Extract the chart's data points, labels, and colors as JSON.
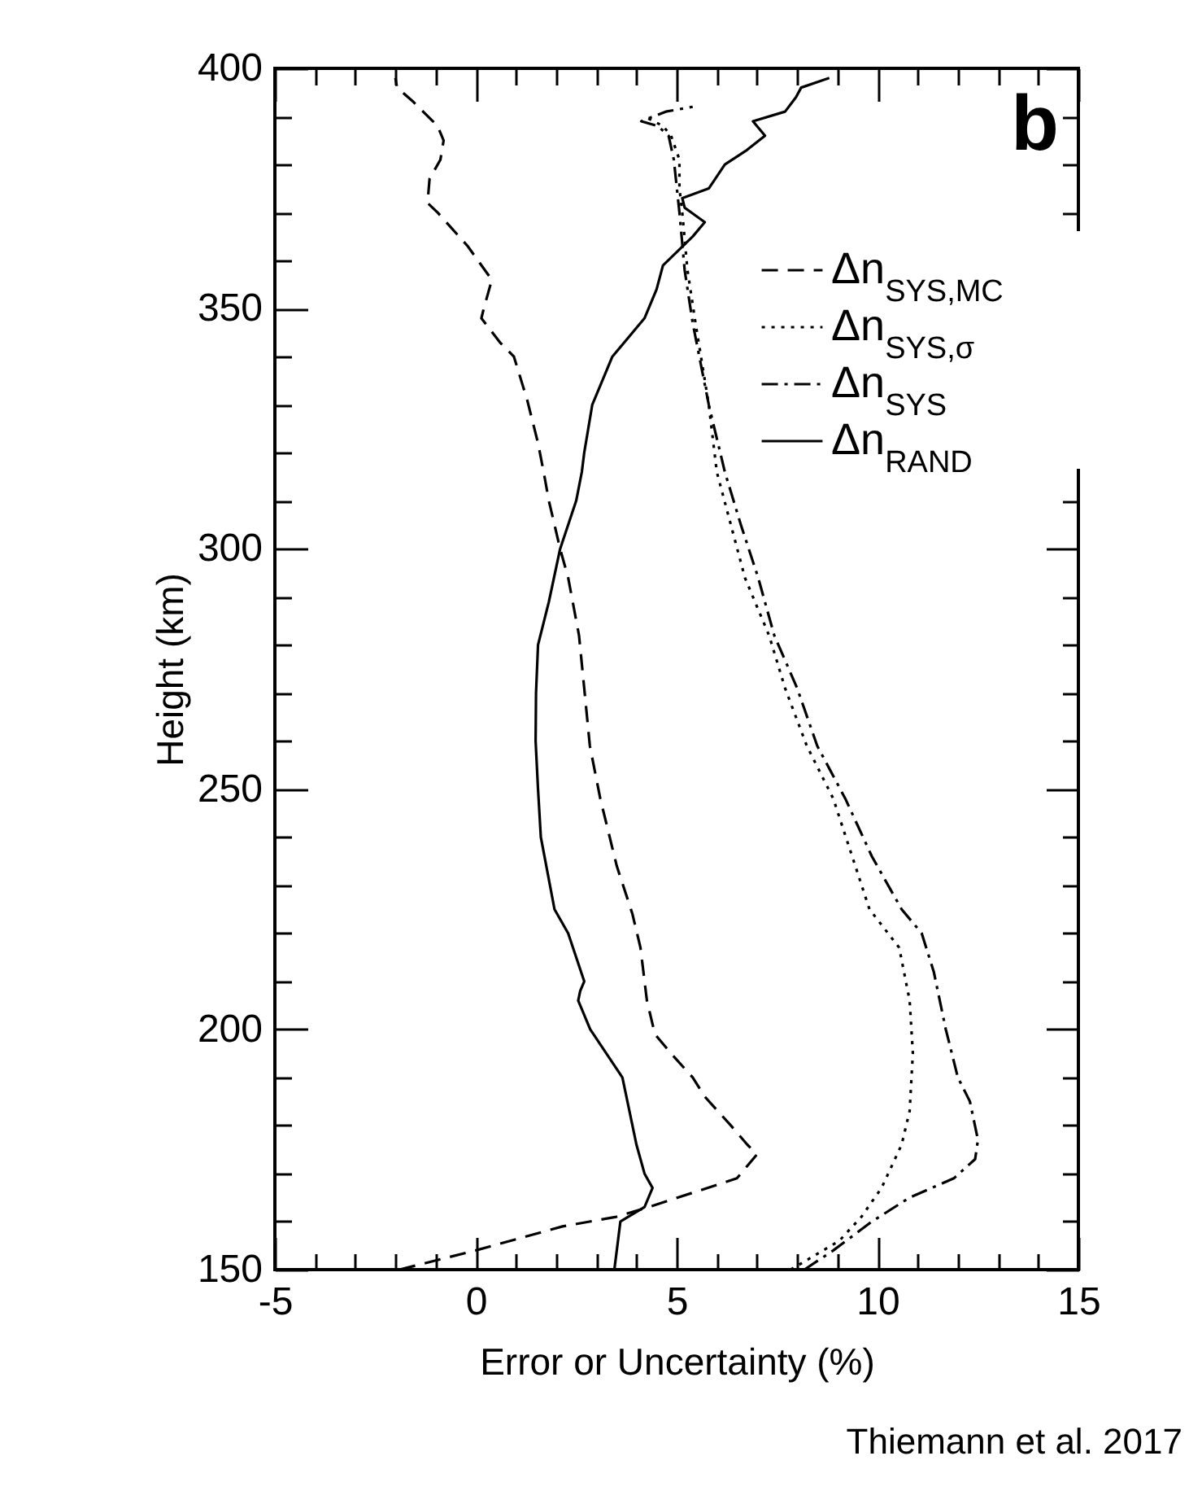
{
  "chart_data": {
    "type": "line",
    "xlabel": "Error or Uncertainty (%)",
    "ylabel": "Height (km)",
    "annotations": [
      "b",
      "Thiemann et al. 2017"
    ],
    "xlim": [
      -5,
      15
    ],
    "ylim": [
      150,
      400
    ],
    "xticks": [
      -5,
      {
        "value": -4,
        "label": null
      },
      {
        "value": -3,
        "label": null
      },
      {
        "value": -2,
        "label": null
      },
      {
        "value": -1,
        "label": null
      },
      0,
      {
        "value": 1,
        "label": null
      },
      {
        "value": 2,
        "label": null
      },
      {
        "value": 3,
        "label": null
      },
      {
        "value": 4,
        "label": null
      },
      5,
      {
        "value": 6,
        "label": null
      },
      {
        "value": 7,
        "label": null
      },
      {
        "value": 8,
        "label": null
      },
      {
        "value": 9,
        "label": null
      },
      10,
      {
        "value": 11,
        "label": null
      },
      {
        "value": 12,
        "label": null
      },
      {
        "value": 13,
        "label": null
      },
      {
        "value": 14,
        "label": null
      },
      15
    ],
    "yticks": [
      150,
      {
        "value": 160,
        "label": null
      },
      {
        "value": 170,
        "label": null
      },
      {
        "value": 180,
        "label": null
      },
      {
        "value": 190,
        "label": null
      },
      200,
      {
        "value": 210,
        "label": null
      },
      {
        "value": 220,
        "label": null
      },
      {
        "value": 230,
        "label": null
      },
      {
        "value": 240,
        "label": null
      },
      250,
      {
        "value": 260,
        "label": null
      },
      {
        "value": 270,
        "label": null
      },
      {
        "value": 280,
        "label": null
      },
      {
        "value": 290,
        "label": null
      },
      300,
      {
        "value": 310,
        "label": null
      },
      {
        "value": 320,
        "label": null
      },
      {
        "value": 330,
        "label": null
      },
      {
        "value": 340,
        "label": null
      },
      350,
      {
        "value": 360,
        "label": null
      },
      {
        "value": 370,
        "label": null
      },
      {
        "value": 380,
        "label": null
      },
      {
        "value": 390,
        "label": null
      },
      400
    ],
    "grid": false,
    "legend": "top right",
    "marker": "none",
    "series": [
      {
        "name": "Δn$_{SYS,MC}$",
        "color": "#000000",
        "line_style": "dashed",
        "x": [
          -1.9,
          0,
          2.16,
          3.5,
          4.3,
          5.4,
          6.5,
          6.7,
          7.0,
          6.76,
          6.35,
          5.7,
          5.4,
          4.86,
          4.46,
          4.26,
          4.1,
          3.9,
          3.51,
          3.1,
          2.84,
          2.7,
          2.57,
          2.3,
          2.1,
          1.82,
          1.69,
          1.55,
          1.28,
          0.95,
          0.6,
          0.14,
          0.2,
          0.4,
          -0.2,
          -0.95,
          -1.2,
          -1.15,
          -0.88,
          -0.8,
          -0.95,
          -1.55,
          -1.96,
          -2.0
        ],
        "values": [
          150,
          154,
          159,
          161,
          163,
          166,
          169,
          171,
          174,
          176,
          180,
          186,
          190,
          195,
          199,
          206,
          217,
          224,
          234,
          248,
          259,
          271,
          282,
          294,
          300,
          310,
          316,
          322,
          331,
          340,
          343,
          348,
          350,
          356,
          363,
          370,
          372,
          377,
          381,
          385,
          388,
          393,
          396,
          398
        ]
      },
      {
        "name": "Δn$_{SYS,σ}$",
        "color": "#000000",
        "line_style": "dotted",
        "x": [
          7.84,
          9.05,
          9.6,
          10.1,
          10.6,
          10.8,
          10.88,
          10.8,
          10.54,
          9.8,
          8.9,
          8.24,
          7.7,
          7.3,
          6.7,
          6.35,
          6.0,
          5.8,
          5.47,
          5.27,
          5.14,
          5.07,
          5.07,
          4.86,
          4.66,
          4.2
        ],
        "values": [
          150,
          156,
          161,
          167,
          176,
          183,
          195,
          206,
          217,
          225,
          248,
          259,
          271,
          282,
          294,
          305,
          316,
          330,
          347,
          358,
          370,
          375,
          381,
          386,
          388,
          390
        ]
      },
      {
        "name": "Δn$_{SYS}$",
        "color": "#000000",
        "line_style": "dashdot",
        "x": [
          8.18,
          8.9,
          9.86,
          10.8,
          11.9,
          12.43,
          12.5,
          12.3,
          12.0,
          11.7,
          11.4,
          11.1,
          10.6,
          9.86,
          9.2,
          8.5,
          8.0,
          7.43,
          7.03,
          6.6,
          6.2,
          5.8,
          5.4,
          5.2,
          5.07,
          4.93,
          4.8,
          4.53,
          4.12,
          4.73,
          5.4
        ],
        "values": [
          150,
          154,
          160,
          165,
          169,
          173,
          177,
          185,
          190,
          200,
          212,
          220,
          225,
          236,
          248,
          259,
          271,
          282,
          294,
          305,
          316,
          330,
          347,
          358,
          370,
          381,
          386,
          388,
          389,
          391,
          392
        ]
      },
      {
        "name": "Δn$_{RAND}$",
        "color": "#000000",
        "line_style": "solid",
        "x": [
          3.45,
          3.6,
          4.2,
          4.4,
          4.2,
          4.0,
          3.9,
          3.8,
          3.65,
          3.25,
          2.85,
          2.55,
          2.6,
          2.7,
          2.3,
          1.96,
          1.62,
          1.55,
          1.49,
          1.5,
          1.55,
          1.82,
          2.1,
          2.5,
          2.64,
          2.7,
          2.9,
          3.4,
          4.2,
          4.5,
          4.66,
          5.4,
          5.7,
          5.2,
          5.14,
          5.8,
          6.2,
          6.75,
          7.2,
          6.9,
          7.7,
          7.97,
          8.1,
          8.8
        ],
        "values": [
          150,
          160,
          163,
          167,
          170,
          176,
          180,
          184,
          190,
          195,
          200,
          206,
          208,
          210,
          220,
          225,
          240,
          250,
          260,
          270,
          280,
          289,
          300,
          310,
          316,
          320,
          330,
          340,
          348,
          354,
          359,
          365,
          368,
          371,
          373,
          375,
          380,
          383,
          386,
          389,
          391,
          394,
          396,
          398
        ]
      }
    ]
  }
}
